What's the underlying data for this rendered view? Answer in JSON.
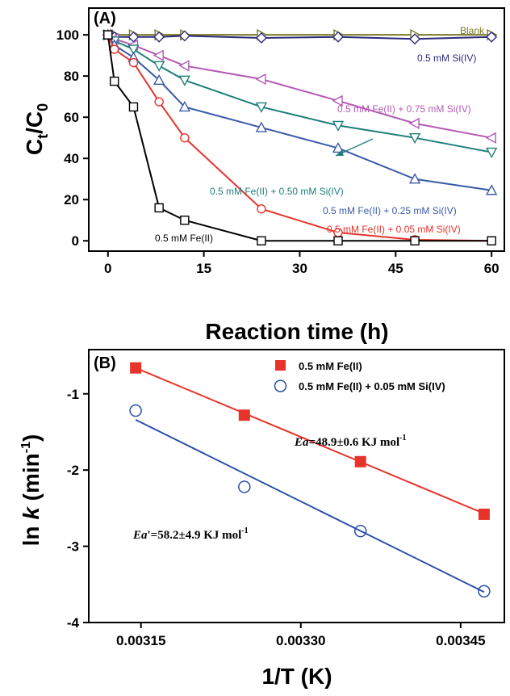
{
  "chart_data": [
    {
      "type": "line",
      "panel_label": "(A)",
      "xlabel": "Reaction time (h)",
      "ylabel": "C_t/C_0",
      "xlim": [
        -3,
        62
      ],
      "ylim": [
        -5,
        113
      ],
      "xticks": [
        0,
        15,
        30,
        45,
        60
      ],
      "yticks": [
        0,
        20,
        40,
        60,
        80,
        100
      ],
      "series": [
        {
          "name": "Blank",
          "color": "#7a7a28",
          "marker": "right-triangle",
          "x": [
            0,
            1,
            4,
            8,
            12,
            24,
            36,
            48,
            60
          ],
          "y": [
            100,
            100,
            100,
            100,
            100,
            100,
            100,
            100,
            100
          ]
        },
        {
          "name": "0.5 mM Si(IV)",
          "color": "#2b2b7a",
          "marker": "diamond",
          "x": [
            0,
            1,
            4,
            8,
            12,
            24,
            36,
            48,
            60
          ],
          "y": [
            100,
            99,
            99,
            99,
            99.5,
            98.5,
            99,
            98,
            99
          ]
        },
        {
          "name": "0.5 mM Fe(II) + 0.75 mM Si(IV)",
          "color": "#b45ab4",
          "marker": "left-triangle",
          "x": [
            0,
            1,
            4,
            8,
            12,
            24,
            36,
            48,
            60
          ],
          "y": [
            100,
            98,
            95,
            90,
            85,
            78.5,
            68,
            57,
            50
          ]
        },
        {
          "name": "0.5 mM Fe(II) + 0.50 mM Si(IV)",
          "color": "#1e7f7a",
          "marker": "down-triangle",
          "x": [
            0,
            1,
            4,
            8,
            12,
            24,
            36,
            48,
            60
          ],
          "y": [
            100,
            97,
            93,
            85,
            78,
            65,
            56,
            50,
            43
          ]
        },
        {
          "name": "0.5 mM Fe(II) + 0.25 mM Si(IV)",
          "color": "#3a5aa8",
          "marker": "up-triangle",
          "x": [
            0,
            1,
            4,
            8,
            12,
            24,
            36,
            48,
            60
          ],
          "y": [
            100,
            95,
            89,
            78,
            65,
            55,
            45,
            30,
            24.5
          ]
        },
        {
          "name": "0.5 mM Fe(II) + 0.05 mM Si(IV)",
          "color": "#e8332b",
          "marker": "circle",
          "x": [
            0,
            1,
            4,
            8,
            12,
            24,
            36,
            48,
            60
          ],
          "y": [
            100,
            93,
            86.5,
            67.5,
            50,
            15.5,
            4,
            0.5,
            0
          ]
        },
        {
          "name": "0.5 mM Fe(II)",
          "color": "#000000",
          "marker": "square",
          "x": [
            0,
            1,
            4,
            8,
            12,
            24,
            36,
            48,
            60
          ],
          "y": [
            100,
            77.5,
            65,
            16,
            10,
            0,
            0,
            0,
            0
          ]
        }
      ],
      "annotations": [
        "Blank",
        "0.5 mM Si(IV)",
        "0.5 mM Fe(II) + 0.75 mM Si(IV)",
        "0.5 mM Fe(II) + 0.50 mM Si(IV)",
        "0.5 mM Fe(II) + 0.25 mM Si(IV)",
        "0.5 mM Fe(II) + 0.05 mM Si(IV)",
        "0.5 mM Fe(II)"
      ]
    },
    {
      "type": "scatter",
      "panel_label": "(B)",
      "xlabel": "1/T (K)",
      "ylabel": "ln k (min⁻)",
      "xlim": [
        0.003101,
        0.003491
      ],
      "ylim": [
        -4,
        -0.42
      ],
      "xticks": [
        0.00315,
        0.0033,
        0.00345
      ],
      "xtick_labels": [
        "0.00315",
        "0.00330",
        "0.00345"
      ],
      "yticks": [
        -4,
        -3,
        -2,
        -1
      ],
      "legend_position": "top-right",
      "series": [
        {
          "name": "0.5 mM Fe(II)",
          "color": "#e8332b",
          "marker": "filled-square",
          "x": [
            0.003145,
            0.003247,
            0.003356,
            0.003472
          ],
          "y": [
            -0.66,
            -1.28,
            -1.89,
            -2.58
          ],
          "fit": {
            "x": [
              0.003145,
              0.003472
            ],
            "y": [
              -0.66,
              -2.57
            ]
          }
        },
        {
          "name": "0.5 mM Fe(II) + 0.05 mM Si(IV)",
          "color": "#2a4fa8",
          "marker": "open-circle",
          "x": [
            0.003145,
            0.003247,
            0.003356,
            0.003472
          ],
          "y": [
            -1.22,
            -2.22,
            -2.8,
            -3.59
          ],
          "fit": {
            "x": [
              0.003145,
              0.003472
            ],
            "y": [
              -1.34,
              -3.6
            ]
          }
        }
      ],
      "annotations": [
        {
          "prefix": "Ea",
          "body": "=48.9±0.6 KJ mol",
          "sup": "-1"
        },
        {
          "prefix": "Ea",
          "body": "'=58.2±4.9 KJ mol",
          "sup": "-1"
        }
      ]
    }
  ]
}
